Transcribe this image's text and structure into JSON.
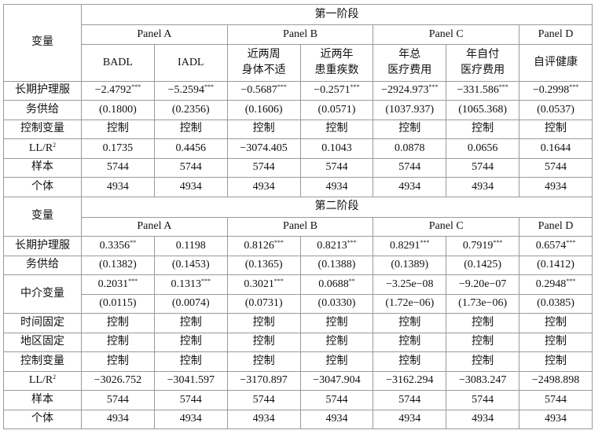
{
  "var_header": "变量",
  "stage1": {
    "title": "第一阶段",
    "panels": [
      {
        "name": "Panel A",
        "columns": [
          "BADL",
          "IADL"
        ]
      },
      {
        "name": "Panel B",
        "columns": [
          [
            "近两周",
            "身体不适"
          ],
          [
            "近两年",
            "患重疾数"
          ]
        ]
      },
      {
        "name": "Panel C",
        "columns": [
          [
            "年总",
            "医疗费用"
          ],
          [
            "年自付",
            "医疗费用"
          ]
        ]
      },
      {
        "name": "Panel D",
        "columns": [
          "自评健康"
        ]
      }
    ],
    "rows": [
      {
        "label": "长期护理服",
        "cells": [
          {
            "v": "−2.4792",
            "sig": "***"
          },
          {
            "v": "−5.2594",
            "sig": "***"
          },
          {
            "v": "−0.5687",
            "sig": "***"
          },
          {
            "v": "−0.2571",
            "sig": "***"
          },
          {
            "v": "−2924.973",
            "sig": "***"
          },
          {
            "v": "−331.586",
            "sig": "***"
          },
          {
            "v": "−0.2998",
            "sig": "***"
          }
        ]
      },
      {
        "label": "务供给",
        "cells": [
          "(0.1800)",
          "(0.2356)",
          "(0.1606)",
          "(0.0571)",
          "(1037.937)",
          "(1065.368)",
          "(0.0537)"
        ]
      },
      {
        "label": "控制变量",
        "cells": [
          "控制",
          "控制",
          "控制",
          "控制",
          "控制",
          "控制",
          "控制"
        ]
      },
      {
        "label": {
          "v": "LL/R",
          "sig": "2"
        },
        "cells": [
          "0.1735",
          "0.4456",
          "−3074.405",
          "0.1043",
          "0.0878",
          "0.0656",
          "0.1644"
        ]
      },
      {
        "label": "样本",
        "cells": [
          "5744",
          "5744",
          "5744",
          "5744",
          "5744",
          "5744",
          "5744"
        ]
      },
      {
        "label": "个体",
        "cells": [
          "4934",
          "4934",
          "4934",
          "4934",
          "4934",
          "4934",
          "4934"
        ]
      }
    ]
  },
  "stage2": {
    "title": "第二阶段",
    "panels": [
      "Panel A",
      "Panel B",
      "Panel C",
      "Panel D"
    ],
    "rows": [
      {
        "label": "长期护理服",
        "cells": [
          {
            "v": "0.3356",
            "sig": "**"
          },
          "0.1198",
          {
            "v": "0.8126",
            "sig": "***"
          },
          {
            "v": "0.8213",
            "sig": "***"
          },
          {
            "v": "0.8291",
            "sig": "***"
          },
          {
            "v": "0.7919",
            "sig": "***"
          },
          {
            "v": "0.6574",
            "sig": "***"
          }
        ]
      },
      {
        "label": "务供给",
        "cells": [
          "(0.1382)",
          "(0.1453)",
          "(0.1365)",
          "(0.1388)",
          "(0.1389)",
          "(0.1425)",
          "(0.1412)"
        ]
      },
      {
        "label": "中介变量",
        "cells": [
          {
            "v": "0.2031",
            "sig": "***"
          },
          {
            "v": "0.1313",
            "sig": "***"
          },
          {
            "v": "0.3021",
            "sig": "***"
          },
          {
            "v": "0.0688",
            "sig": "**"
          },
          "−3.25e−08",
          "−9.20e−07",
          {
            "v": "0.2948",
            "sig": "***"
          }
        ]
      },
      {
        "cells": [
          "(0.0115)",
          "(0.0074)",
          "(0.0731)",
          "(0.0330)",
          "(1.72e−06)",
          "(1.73e−06)",
          "(0.0385)"
        ]
      },
      {
        "label": "时间固定",
        "cells": [
          "控制",
          "控制",
          "控制",
          "控制",
          "控制",
          "控制",
          "控制"
        ]
      },
      {
        "label": "地区固定",
        "cells": [
          "控制",
          "控制",
          "控制",
          "控制",
          "控制",
          "控制",
          "控制"
        ]
      },
      {
        "label": "控制变量",
        "cells": [
          "控制",
          "控制",
          "控制",
          "控制",
          "控制",
          "控制",
          "控制"
        ]
      },
      {
        "label": {
          "v": "LL/R",
          "sig": "2"
        },
        "cells": [
          "−3026.752",
          "−3041.597",
          "−3170.897",
          "−3047.904",
          "−3162.294",
          "−3083.247",
          "−2498.898"
        ]
      },
      {
        "label": "样本",
        "cells": [
          "5744",
          "5744",
          "5744",
          "5744",
          "5744",
          "5744",
          "5744"
        ]
      },
      {
        "label": "个体",
        "cells": [
          "4934",
          "4934",
          "4934",
          "4934",
          "4934",
          "4934",
          "4934"
        ]
      }
    ]
  }
}
